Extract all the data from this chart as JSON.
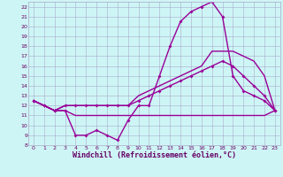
{
  "x_vals": [
    0,
    1,
    2,
    3,
    4,
    5,
    6,
    7,
    8,
    9,
    10,
    11,
    12,
    13,
    14,
    15,
    16,
    17,
    18,
    19,
    20,
    21,
    22,
    23
  ],
  "line1": [
    12.5,
    12.0,
    11.5,
    11.5,
    9.0,
    9.0,
    9.5,
    9.0,
    8.5,
    10.5,
    12.0,
    12.0,
    15.0,
    18.0,
    20.5,
    21.5,
    22.0,
    22.5,
    21.0,
    15.0,
    13.5,
    13.0,
    12.5,
    11.5
  ],
  "line2": [
    12.5,
    12.0,
    11.5,
    11.5,
    11.0,
    11.0,
    11.0,
    11.0,
    11.0,
    11.0,
    11.0,
    11.0,
    11.0,
    11.0,
    11.0,
    11.0,
    11.0,
    11.0,
    11.0,
    11.0,
    11.0,
    11.0,
    11.0,
    11.5
  ],
  "line3": [
    12.5,
    12.0,
    11.5,
    12.0,
    12.0,
    12.0,
    12.0,
    12.0,
    12.0,
    12.0,
    13.0,
    13.5,
    14.0,
    14.5,
    15.0,
    15.5,
    16.0,
    17.5,
    17.5,
    17.5,
    17.0,
    16.5,
    15.0,
    11.5
  ],
  "line4": [
    12.5,
    12.0,
    11.5,
    12.0,
    12.0,
    12.0,
    12.0,
    12.0,
    12.0,
    12.0,
    12.5,
    13.0,
    13.5,
    14.0,
    14.5,
    15.0,
    15.5,
    16.0,
    16.5,
    16.0,
    15.0,
    14.0,
    13.0,
    11.5
  ],
  "color": "#990099",
  "bg_color": "#cef5f5",
  "grid_color": "#aaaacc",
  "tick_color": "#660066",
  "xlim": [
    -0.5,
    23.5
  ],
  "ylim": [
    8,
    22.5
  ],
  "yticks": [
    8,
    9,
    10,
    11,
    12,
    13,
    14,
    15,
    16,
    17,
    18,
    19,
    20,
    21,
    22
  ],
  "xticks": [
    0,
    1,
    2,
    3,
    4,
    5,
    6,
    7,
    8,
    9,
    10,
    11,
    12,
    13,
    14,
    15,
    16,
    17,
    18,
    19,
    20,
    21,
    22,
    23
  ],
  "xlabel": "Windchill (Refroidissement éolien,°C)",
  "marker": "D",
  "marker_size": 2.0,
  "linewidth": 1.0
}
